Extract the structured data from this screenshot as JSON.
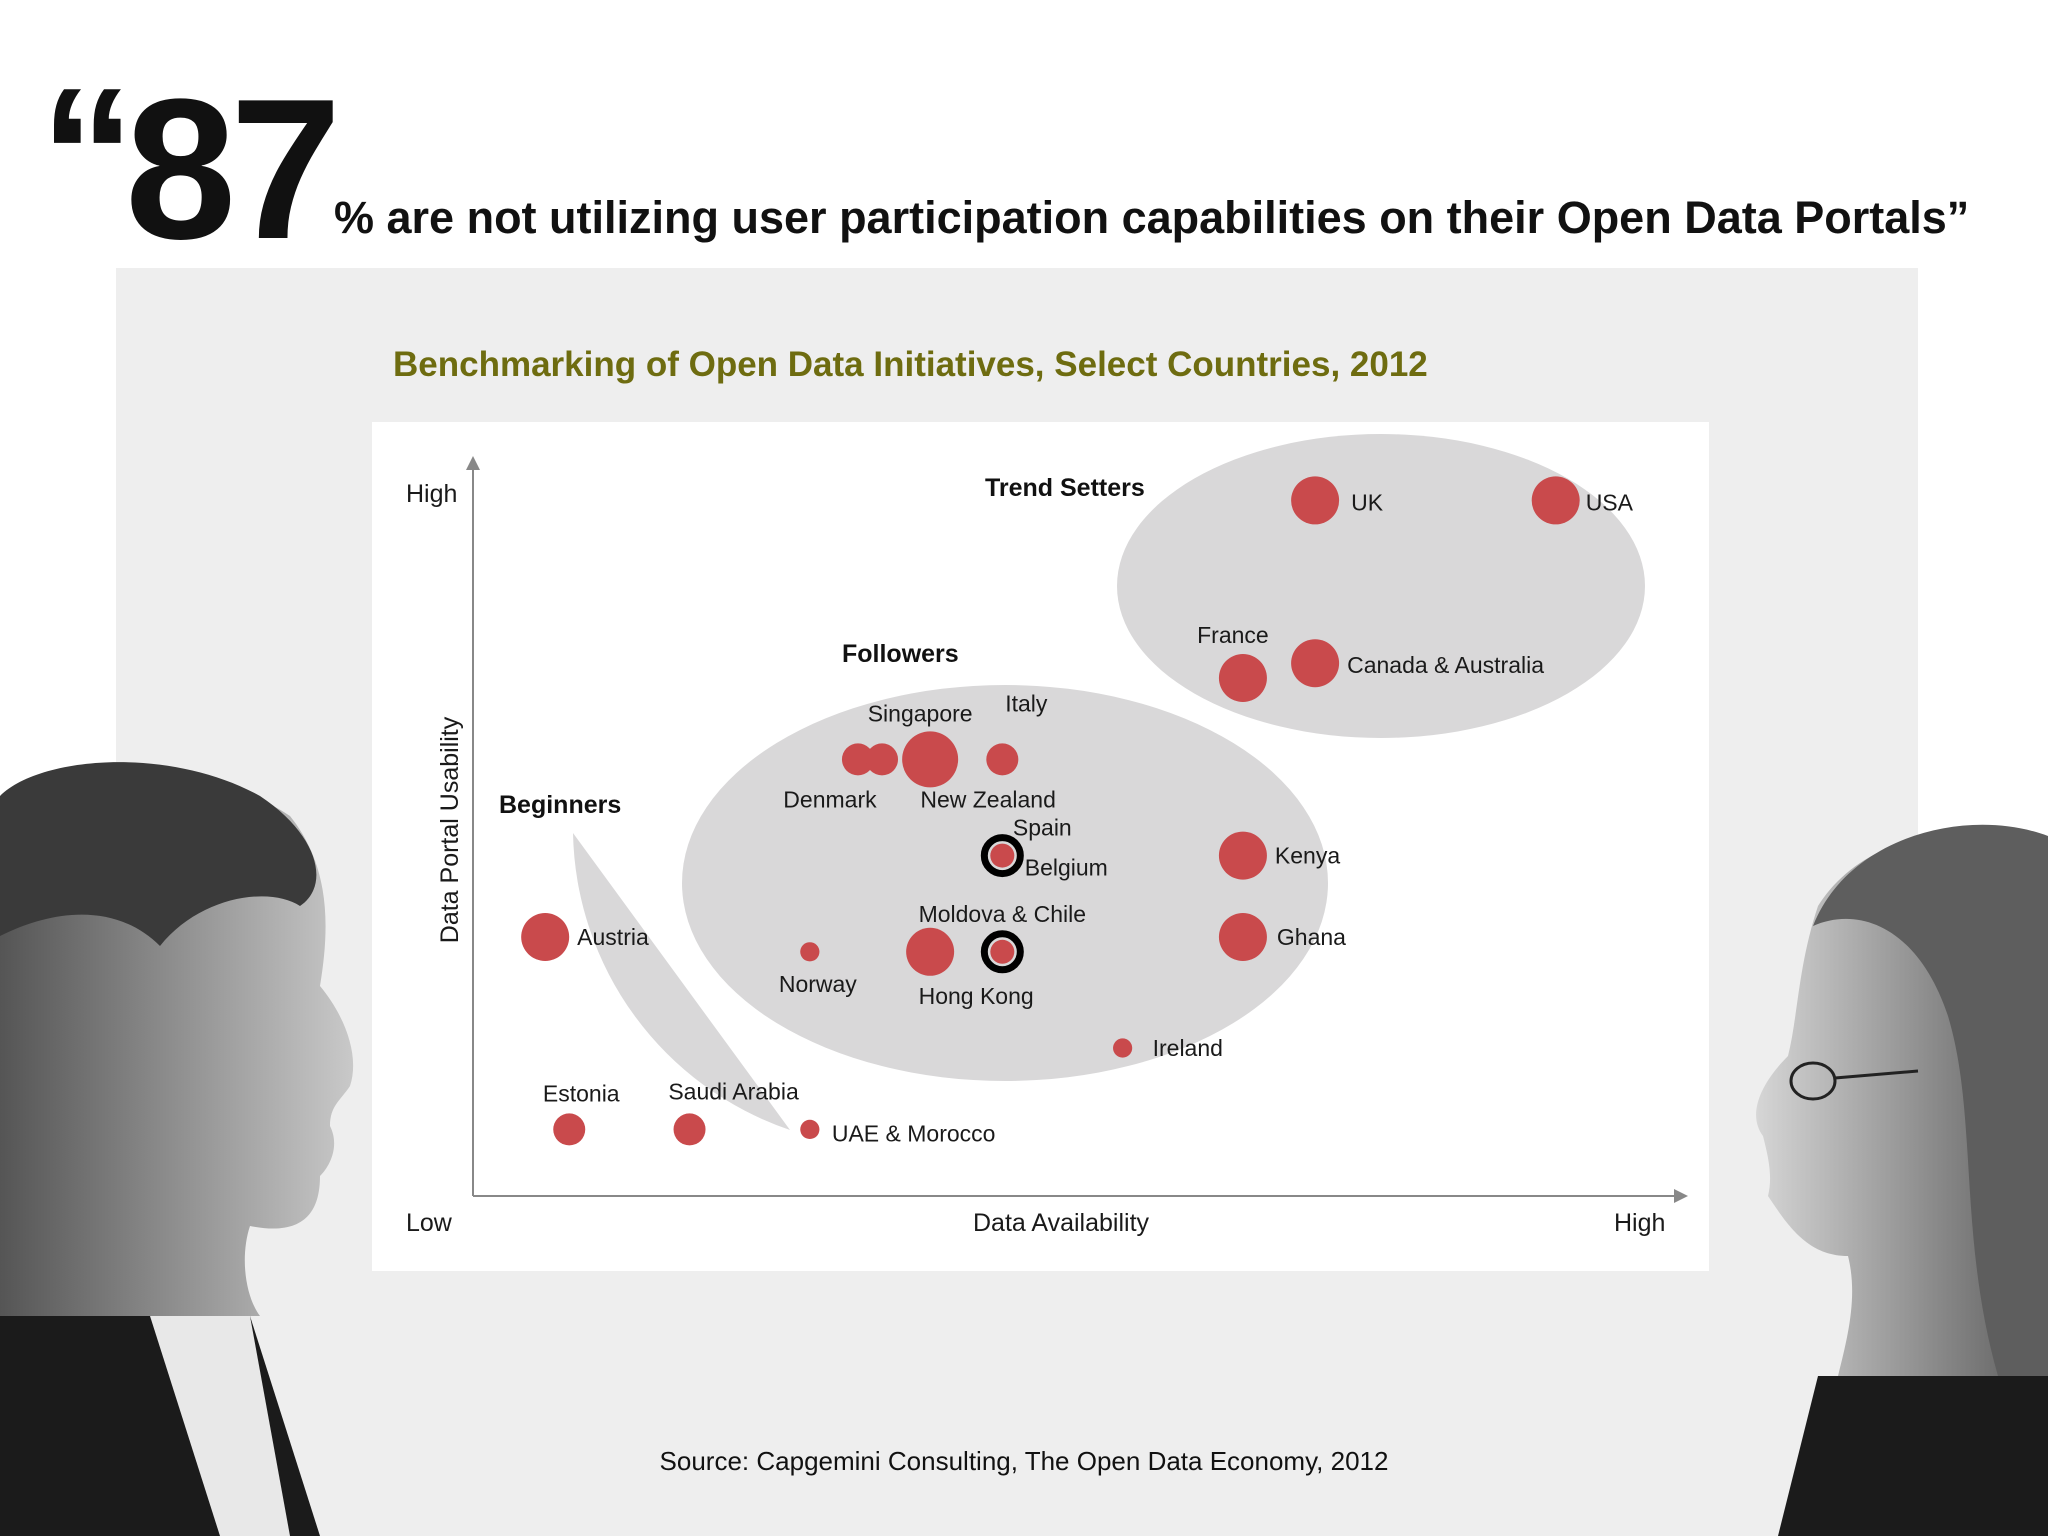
{
  "headline": {
    "quote_open": "“",
    "number": "87",
    "text": "% are not utilizing user participation capabilities on their Open Data Portals”"
  },
  "source": "Source: Capgemini Consulting, The Open Data Economy, 2012",
  "colors": {
    "bubble": "#c94a4c",
    "group_fill": "#d9d8d9",
    "title": "#6e6c10",
    "panel": "#eeeeee"
  },
  "chart_data": {
    "type": "scatter",
    "title": "Benchmarking of Open Data Initiatives, Select Countries, 2012",
    "xlabel": "Data Availability",
    "ylabel": "Data Portal Usability",
    "x_low_label": "Low",
    "x_high_label": "High",
    "y_low_label": "Low",
    "y_high_label": "High",
    "xlim": [
      0,
      10
    ],
    "ylim": [
      0,
      10
    ],
    "groups": [
      {
        "name": "Trend Setters"
      },
      {
        "name": "Followers"
      },
      {
        "name": "Beginners"
      }
    ],
    "points": [
      {
        "label": "UK",
        "x": 7.0,
        "y": 9.4,
        "size": 3,
        "group": "Trend Setters"
      },
      {
        "label": "USA",
        "x": 9.0,
        "y": 9.4,
        "size": 3,
        "group": "Trend Setters"
      },
      {
        "label": "France",
        "x": 6.4,
        "y": 7.0,
        "size": 3,
        "group": "Trend Setters"
      },
      {
        "label": "Canada & Australia",
        "x": 7.0,
        "y": 7.2,
        "size": 3,
        "group": "Trend Setters"
      },
      {
        "label": "Denmark",
        "x": 3.2,
        "y": 5.9,
        "size": 2,
        "group": "Followers"
      },
      {
        "label": "",
        "x": 3.4,
        "y": 5.9,
        "size": 2,
        "group": "Followers"
      },
      {
        "label": "Singapore",
        "x": 3.8,
        "y": 5.9,
        "size": 3.5,
        "group": "Followers"
      },
      {
        "label": "New Zealand",
        "x": 3.8,
        "y": 5.9,
        "size": 0,
        "group": "Followers"
      },
      {
        "label": "Italy",
        "x": 4.4,
        "y": 5.9,
        "size": 2,
        "group": "Followers"
      },
      {
        "label": "Spain",
        "x": 4.4,
        "y": 4.6,
        "size": 1.5,
        "group": "Followers",
        "highlight": true
      },
      {
        "label": "Belgium",
        "x": 4.4,
        "y": 4.6,
        "size": 0,
        "group": "Followers"
      },
      {
        "label": "Kenya",
        "x": 6.4,
        "y": 4.6,
        "size": 3,
        "group": "Followers"
      },
      {
        "label": "Norway",
        "x": 2.8,
        "y": 3.3,
        "size": 1.2,
        "group": "Followers"
      },
      {
        "label": "Hong Kong",
        "x": 3.8,
        "y": 3.3,
        "size": 3,
        "group": "Followers"
      },
      {
        "label": "Moldova & Chile",
        "x": 4.4,
        "y": 3.3,
        "size": 1.5,
        "group": "Followers",
        "highlight": true
      },
      {
        "label": "Ghana",
        "x": 6.4,
        "y": 3.5,
        "size": 3,
        "group": "Followers"
      },
      {
        "label": "Ireland",
        "x": 5.4,
        "y": 2.0,
        "size": 1.2,
        "group": "Followers"
      },
      {
        "label": "Austria",
        "x": 0.6,
        "y": 3.5,
        "size": 3,
        "group": "Beginners"
      },
      {
        "label": "Estonia",
        "x": 0.8,
        "y": 0.9,
        "size": 2,
        "group": "Beginners"
      },
      {
        "label": "Saudi Arabia",
        "x": 1.8,
        "y": 0.9,
        "size": 2,
        "group": "Beginners"
      },
      {
        "label": "UAE & Morocco",
        "x": 2.8,
        "y": 0.9,
        "size": 1.2,
        "group": "Beginners"
      }
    ]
  }
}
